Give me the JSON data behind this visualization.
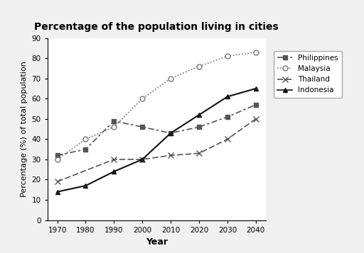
{
  "title": "Percentage of the population living in cities",
  "xlabel": "Year",
  "ylabel": "Percentage (%) of total population",
  "years": [
    1970,
    1980,
    1990,
    2000,
    2010,
    2020,
    2030,
    2040
  ],
  "series": {
    "Philippines": {
      "values": [
        32,
        35,
        49,
        46,
        43,
        46,
        51,
        57
      ],
      "color": "#555555",
      "linestyle": "dashdot",
      "marker": "s",
      "markersize": 5
    },
    "Malaysia": {
      "values": [
        30,
        40,
        46,
        60,
        70,
        76,
        81,
        83
      ],
      "color": "#777777",
      "linestyle": "dotted",
      "marker": "o",
      "markersize": 6,
      "markerfacecolor": "white"
    },
    "Thailand": {
      "values": [
        19,
        null,
        30,
        30,
        32,
        33,
        40,
        50
      ],
      "color": "#555555",
      "linestyle": "dashed",
      "marker": "x",
      "markersize": 6
    },
    "Indonesia": {
      "values": [
        14,
        17,
        24,
        30,
        43,
        52,
        61,
        65
      ],
      "color": "#222222",
      "linestyle": "solid",
      "marker": "^",
      "markersize": 5
    }
  },
  "ylim": [
    0,
    90
  ],
  "yticks": [
    0,
    10,
    20,
    30,
    40,
    50,
    60,
    70,
    80,
    90
  ],
  "background_color": "#f0f0f0",
  "plot_bg": "#ffffff",
  "figsize": [
    5.12,
    3.57
  ],
  "dpi": 100,
  "top_bar_color": "#d0d0d0",
  "top_bar_height": 0.12
}
